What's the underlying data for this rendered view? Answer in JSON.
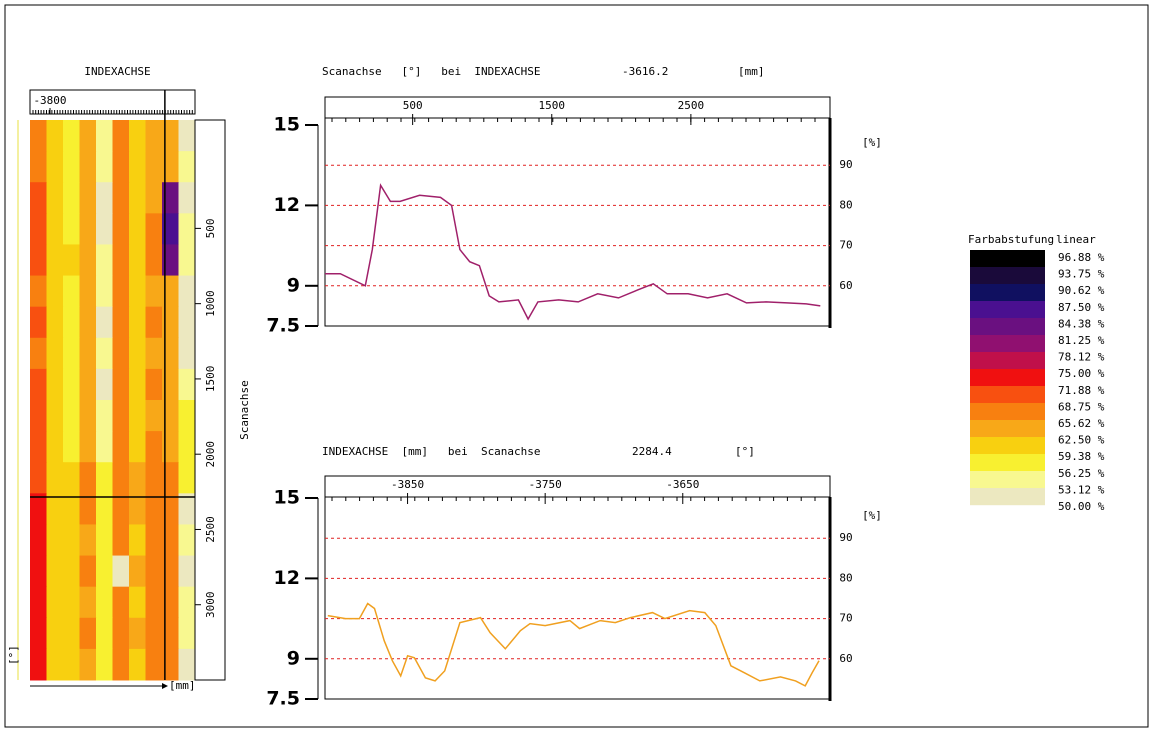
{
  "chart_data": [
    {
      "type": "heatmap",
      "title": "INDEXACHSE",
      "xlim": [
        -3832,
        -3568
      ],
      "xticks": [
        -3800
      ],
      "ylim": [
        -220,
        3500
      ],
      "yticks": [
        500,
        1000,
        1500,
        2000,
        2500,
        3000
      ],
      "y_label": "Scanachse",
      "x_unit": "[mm]",
      "y_unit": "[°]",
      "cursor_x": -3616.2,
      "cursor_y": 2284.4,
      "values": [
        [
          68,
          62,
          60,
          66,
          56,
          68,
          63,
          66,
          65,
          54
        ],
        [
          70,
          63,
          59,
          67,
          57,
          69,
          64,
          67,
          66,
          55
        ],
        [
          71,
          62,
          60,
          66,
          53,
          68,
          63,
          67,
          84,
          54
        ],
        [
          71,
          63,
          60,
          66,
          54,
          69,
          64,
          68,
          87,
          55
        ],
        [
          72,
          63,
          61,
          67,
          56,
          68,
          64,
          69,
          84,
          56
        ],
        [
          70,
          62,
          60,
          66,
          55,
          68,
          63,
          67,
          66,
          53
        ],
        [
          71,
          63,
          59,
          67,
          54,
          69,
          64,
          68,
          67,
          54
        ],
        [
          70,
          62,
          60,
          66,
          55,
          68,
          63,
          67,
          66,
          53
        ],
        [
          72,
          63,
          60,
          67,
          54,
          69,
          64,
          68,
          67,
          55
        ],
        [
          71,
          62,
          59,
          66,
          56,
          68,
          63,
          67,
          66,
          59
        ],
        [
          72,
          64,
          60,
          67,
          57,
          69,
          64,
          68,
          67,
          60
        ],
        [
          73,
          63,
          61,
          68,
          58,
          69,
          65,
          68,
          68,
          58
        ],
        [
          74,
          64,
          62,
          68,
          59,
          70,
          65,
          69,
          68,
          54
        ],
        [
          74,
          63,
          61,
          67,
          60,
          69,
          64,
          68,
          69,
          55
        ],
        [
          75,
          64,
          62,
          68,
          60,
          53,
          65,
          69,
          68,
          54
        ],
        [
          74,
          63,
          61,
          67,
          59,
          69,
          64,
          68,
          69,
          56
        ],
        [
          75,
          64,
          62,
          68,
          60,
          70,
          65,
          69,
          68,
          55
        ],
        [
          74,
          63,
          61,
          67,
          59,
          69,
          64,
          68,
          69,
          54
        ]
      ],
      "colorbar": {
        "title": "Farbabstufung",
        "scale": "linear",
        "levels": [
          {
            "value": 96.88,
            "label": "96.88 %",
            "color": "#000000"
          },
          {
            "value": 93.75,
            "label": "93.75 %",
            "color": "#1a0a3a"
          },
          {
            "value": 90.62,
            "label": "90.62 %",
            "color": "#101060"
          },
          {
            "value": 87.5,
            "label": "87.50 %",
            "color": "#4a1090"
          },
          {
            "value": 84.38,
            "label": "84.38 %",
            "color": "#6a1080"
          },
          {
            "value": 81.25,
            "label": "81.25 %",
            "color": "#901070"
          },
          {
            "value": 78.12,
            "label": "78.12 %",
            "color": "#c0104a"
          },
          {
            "value": 75,
            "label": "75.00 %",
            "color": "#f01010"
          },
          {
            "value": 71.88,
            "label": "71.88 %",
            "color": "#f85010"
          },
          {
            "value": 68.75,
            "label": "68.75 %",
            "color": "#f88010"
          },
          {
            "value": 65.62,
            "label": "65.62 %",
            "color": "#f8a818"
          },
          {
            "value": 62.5,
            "label": "62.50 %",
            "color": "#f8d010"
          },
          {
            "value": 59.38,
            "label": "59.38 %",
            "color": "#f8f030"
          },
          {
            "value": 56.25,
            "label": "56.25 %",
            "color": "#f8f890"
          },
          {
            "value": 53.12,
            "label": "53.12 %",
            "color": "#ece8c0"
          },
          {
            "value": 50,
            "label": "50.00 %"
          }
        ]
      }
    },
    {
      "type": "line",
      "title": "Scanachse   [°]   bei  INDEXACHSE",
      "title_unit": "[mm]",
      "xlim": [
        -130,
        3500
      ],
      "xticks": [
        500,
        1500,
        2500
      ],
      "ylim": [
        7.5,
        15
      ],
      "yticks": [
        7.5,
        9,
        12,
        15
      ],
      "y2lim": [
        50,
        100
      ],
      "y2ticks": [
        60,
        70,
        80,
        90
      ],
      "y2_label": "[%]",
      "grid": true,
      "x": [
        -130,
        -20,
        160,
        210,
        270,
        340,
        410,
        550,
        700,
        780,
        840,
        910,
        980,
        1050,
        1120,
        1260,
        1330,
        1400,
        1550,
        1690,
        1830,
        1980,
        2120,
        2230,
        2330,
        2480,
        2620,
        2760,
        2900,
        3040,
        3190,
        3330,
        3430
      ],
      "series": [
        {
          "color": "#a0206a",
          "axis": "y2",
          "values": [
            63,
            63,
            60,
            69,
            85,
            81,
            81,
            82.5,
            82,
            80,
            69,
            66,
            65,
            57.5,
            56,
            56.5,
            51.75,
            56,
            56.5,
            56,
            58,
            57,
            59,
            60.5,
            58,
            58,
            57,
            58,
            55.75,
            56,
            55.75,
            55.5,
            55
          ]
        }
      ]
    },
    {
      "type": "line",
      "title": "INDEXACHSE  [mm]   bei  Scanachse",
      "title_unit": "[°]",
      "xlim": [
        -3910,
        -3543
      ],
      "xticks": [
        -3850,
        -3750,
        -3650
      ],
      "ylim": [
        7.5,
        15
      ],
      "yticks": [
        7.5,
        9,
        12,
        15
      ],
      "y2lim": [
        50,
        100
      ],
      "y2ticks": [
        60,
        70,
        80,
        90
      ],
      "y2_label": "[%]",
      "grid": true,
      "x": [
        -3908,
        -3895,
        -3885,
        -3879,
        -3874,
        -3867,
        -3861,
        -3855,
        -3850,
        -3845,
        -3837,
        -3830,
        -3823,
        -3812,
        -3797,
        -3790,
        -3779,
        -3768,
        -3761,
        -3750,
        -3732,
        -3725,
        -3710,
        -3699,
        -3688,
        -3672,
        -3663,
        -3645,
        -3634,
        -3626,
        -3615,
        -3605,
        -3594,
        -3579,
        -3568,
        -3561,
        -3556,
        -3551
      ],
      "series": [
        {
          "color": "#f0a020",
          "axis": "y2",
          "values": [
            70.75,
            70,
            70,
            73.75,
            72.5,
            64.5,
            59.5,
            55.75,
            60.75,
            60.25,
            55.25,
            54.5,
            57,
            69,
            70.25,
            66.5,
            62.5,
            67,
            68.75,
            68.25,
            69.5,
            67.5,
            69.5,
            69,
            70.25,
            71.5,
            70,
            72,
            71.5,
            68.25,
            58.25,
            56.5,
            54.5,
            55.5,
            54.5,
            53.25,
            56.5,
            59.5
          ]
        }
      ]
    }
  ]
}
